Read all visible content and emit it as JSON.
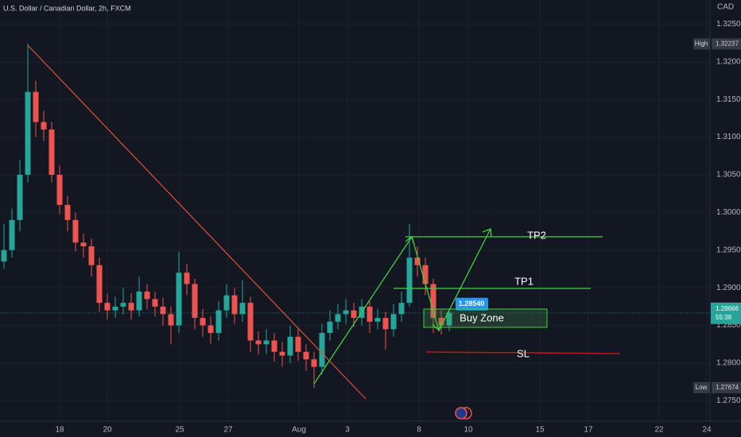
{
  "chart_data": {
    "type": "candlestick",
    "title": "U.S. Dollar / Canadian Dollar, 2h, FXCM",
    "currency": "CAD",
    "up_color": "#26a69a",
    "down_color": "#ef5350",
    "grid": true,
    "ylim": [
      1.2723,
      1.3282
    ],
    "yticks": [
      {
        "value": 1.325,
        "label": "1.32500"
      },
      {
        "value": 1.32,
        "label": "1.32000"
      },
      {
        "value": 1.315,
        "label": "1.31500"
      },
      {
        "value": 1.31,
        "label": "1.31000"
      },
      {
        "value": 1.305,
        "label": "1.30500"
      },
      {
        "value": 1.3,
        "label": "1.30000"
      },
      {
        "value": 1.295,
        "label": "1.29500"
      },
      {
        "value": 1.29,
        "label": "1.29000"
      },
      {
        "value": 1.285,
        "label": "1.28500"
      },
      {
        "value": 1.28,
        "label": "1.28000"
      },
      {
        "value": 1.275,
        "label": "1.27500"
      }
    ],
    "xlim": [
      0,
      89.3
    ],
    "xticks": [
      {
        "value": 7.5,
        "label": "18"
      },
      {
        "value": 13.5,
        "label": "20"
      },
      {
        "value": 22.6,
        "label": "25"
      },
      {
        "value": 28.7,
        "label": "27"
      },
      {
        "value": 37.6,
        "label": "Aug"
      },
      {
        "value": 43.7,
        "label": "3"
      },
      {
        "value": 52.7,
        "label": "8"
      },
      {
        "value": 58.9,
        "label": "10"
      },
      {
        "value": 67.9,
        "label": "15"
      },
      {
        "value": 74,
        "label": "17"
      },
      {
        "value": 82.9,
        "label": "22"
      },
      {
        "value": 88.9,
        "label": "24"
      }
    ],
    "open": [
      1.2935,
      1.295,
      1.299,
      1.305,
      1.316,
      1.312,
      1.311,
      1.305,
      1.301,
      1.299,
      1.296,
      1.2955,
      1.293,
      1.288,
      1.287,
      1.2875,
      1.288,
      1.287,
      1.2895,
      1.2885,
      1.2875,
      1.2865,
      1.285,
      1.292,
      1.2905,
      1.286,
      1.285,
      1.284,
      1.287,
      1.289,
      1.2865,
      1.288,
      1.283,
      1.2825,
      1.283,
      1.2815,
      1.281,
      1.2835,
      1.2815,
      1.2805,
      1.2795,
      1.284,
      1.2855,
      1.2865,
      1.287,
      1.286,
      1.2875,
      1.2855,
      1.286,
      1.2845,
      1.2865,
      1.288,
      1.294,
      1.293,
      1.2905,
      1.286,
      1.285
    ],
    "high": [
      1.2985,
      1.3005,
      1.307,
      1.3224,
      1.3175,
      1.3135,
      1.312,
      1.3062,
      1.3022,
      1.3,
      1.2972,
      1.2965,
      1.294,
      1.2892,
      1.2888,
      1.29,
      1.2893,
      1.2915,
      1.2905,
      1.2895,
      1.2887,
      1.2875,
      1.2948,
      1.2932,
      1.2912,
      1.2872,
      1.2862,
      1.2882,
      1.2905,
      1.29,
      1.291,
      1.2888,
      1.2842,
      1.2845,
      1.284,
      1.2828,
      1.285,
      1.2845,
      1.2825,
      1.2815,
      1.2852,
      1.287,
      1.2878,
      1.2885,
      1.288,
      1.2885,
      1.2882,
      1.2872,
      1.2868,
      1.2878,
      1.2895,
      1.2985,
      1.2955,
      1.294,
      1.2912,
      1.287,
      1.2872
    ],
    "low": [
      1.2925,
      1.294,
      1.2975,
      1.304,
      1.31,
      1.3095,
      1.304,
      1.2998,
      1.2975,
      1.2948,
      1.294,
      1.2915,
      1.2868,
      1.2858,
      1.286,
      1.2865,
      1.2858,
      1.2862,
      1.2872,
      1.2862,
      1.285,
      1.2825,
      1.284,
      1.289,
      1.2845,
      1.2835,
      1.2826,
      1.283,
      1.286,
      1.2852,
      1.2855,
      1.2815,
      1.2812,
      1.2812,
      1.2802,
      1.2795,
      1.28,
      1.2803,
      1.279,
      1.2767,
      1.2785,
      1.283,
      1.2845,
      1.2852,
      1.2848,
      1.285,
      1.284,
      1.2845,
      1.2818,
      1.2835,
      1.2855,
      1.2875,
      1.2915,
      1.289,
      1.284,
      1.2838,
      1.2842
    ],
    "close": [
      1.295,
      1.299,
      1.305,
      1.316,
      1.312,
      1.311,
      1.305,
      1.301,
      1.299,
      1.296,
      1.2955,
      1.293,
      1.288,
      1.287,
      1.2875,
      1.288,
      1.287,
      1.2895,
      1.2885,
      1.2875,
      1.2865,
      1.285,
      1.292,
      1.2905,
      1.286,
      1.285,
      1.284,
      1.287,
      1.289,
      1.2865,
      1.288,
      1.283,
      1.2825,
      1.283,
      1.2815,
      1.281,
      1.2835,
      1.2815,
      1.2805,
      1.2795,
      1.284,
      1.2855,
      1.2865,
      1.287,
      1.286,
      1.2875,
      1.2855,
      1.286,
      1.2845,
      1.2865,
      1.288,
      1.294,
      1.293,
      1.2905,
      1.286,
      1.285,
      1.2867
    ],
    "high_marker": {
      "label": "High",
      "value": 1.32237
    },
    "low_marker": {
      "label": "Low",
      "value": 1.27674
    },
    "last_price": {
      "value": 1.28666,
      "countdown": "55:38"
    },
    "annotations": {
      "tp2": "TP2",
      "tp1": "TP1",
      "sl": "SL",
      "buy_zone": "Buy Zone",
      "price_label": {
        "value": 1.2854,
        "label": "1.28540"
      }
    }
  }
}
